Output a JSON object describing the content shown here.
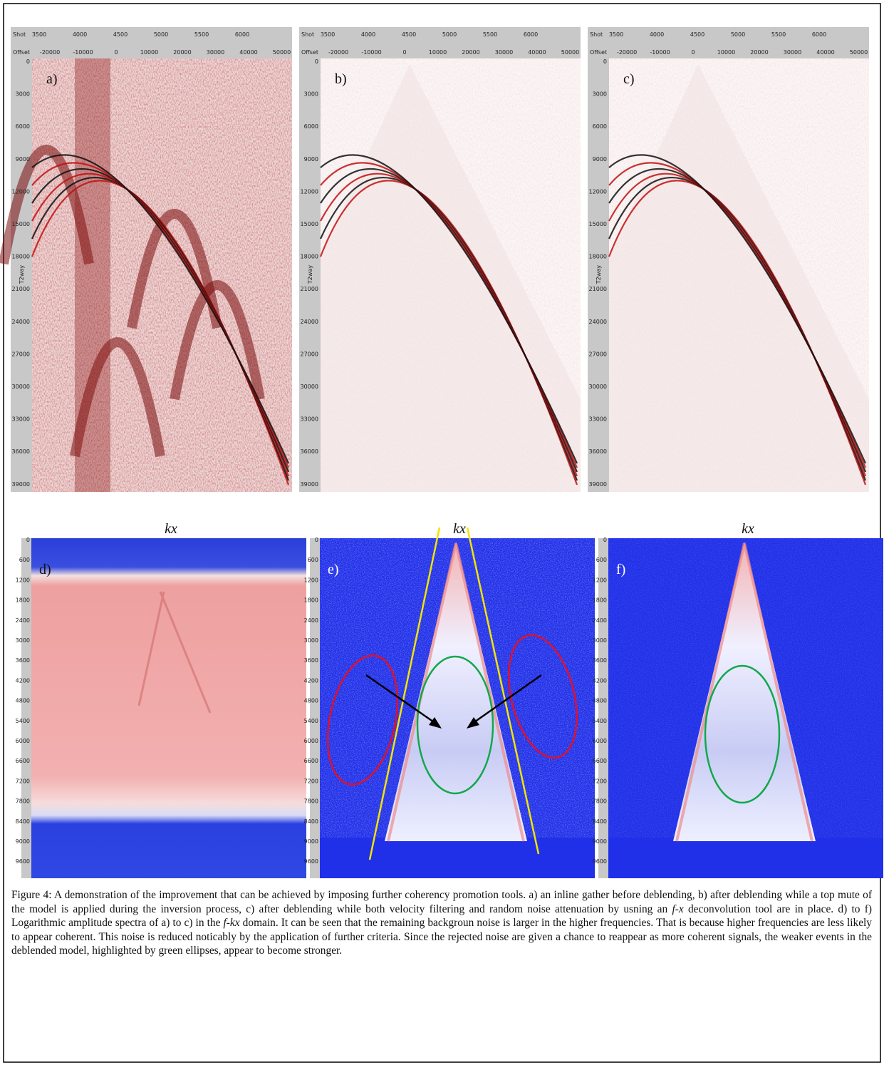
{
  "seismic_panels": {
    "labels": [
      "a)",
      "b)",
      "c)"
    ],
    "shot_title": "Shot",
    "offset_title": "Offset",
    "time_title": "T2way",
    "shot_ticks": [
      3500,
      4000,
      4500,
      5000,
      5500,
      6000
    ],
    "offset_ticks": [
      -20000,
      -10000,
      0,
      10000,
      20000,
      30000,
      40000,
      50000
    ],
    "time_ticks": [
      0,
      3000,
      6000,
      9000,
      12000,
      15000,
      18000,
      21000,
      24000,
      27000,
      30000,
      33000,
      36000,
      39000
    ]
  },
  "spectra_panels": {
    "labels": [
      "d)",
      "e)",
      "f)"
    ],
    "title": "kx",
    "freq_ticks": [
      0,
      600,
      1200,
      1800,
      2400,
      3000,
      3600,
      4200,
      4800,
      5400,
      6000,
      6600,
      7200,
      7800,
      8400,
      9000,
      9600
    ]
  },
  "caption": [
    "Figure 4: A demonstration of the improvement that can be achieved by imposing further coherency promotion tools. a) an inline gather before deblending, b) after deblending while a top mute of the model is applied during the inversion process, c) after deblending while both velocity filtering and random noise attenuation by usning an ",
    "f-x",
    " deconvolution tool are in place. d) to f) Logarithmic amplitude spectra of a) to c) in the ",
    "f-kx",
    " domain. It can be seen that the remaining backgroun noise is larger in the higher frequencies. That is because higher frequencies are less likely to appear coherent. This noise is reduced noticably by the application of further criteria. Since the rejected noise are given a chance to reappear as more coherent signals, the weaker events in the deblended model, highlighted by green ellipses, appear to become stronger."
  ]
}
